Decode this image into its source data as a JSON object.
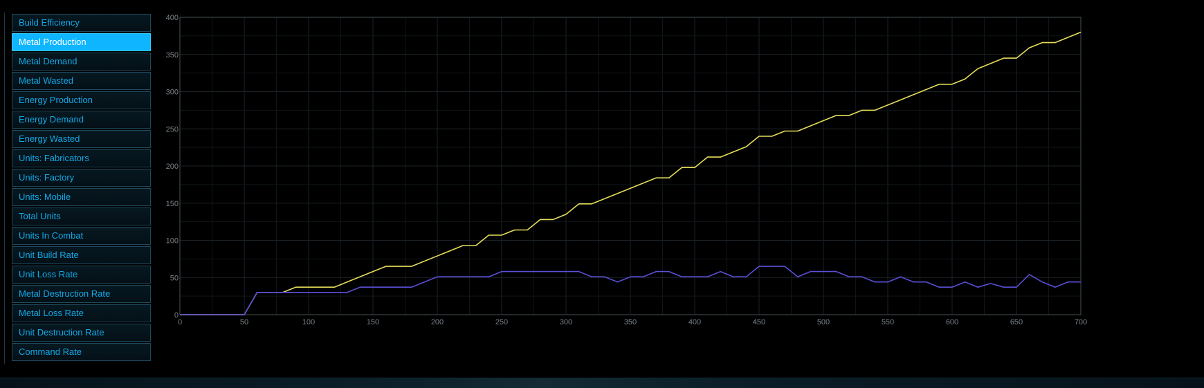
{
  "sidebar": {
    "items": [
      {
        "label": "Build Efficiency",
        "active": false
      },
      {
        "label": "Metal Production",
        "active": true
      },
      {
        "label": "Metal Demand",
        "active": false
      },
      {
        "label": "Metal Wasted",
        "active": false
      },
      {
        "label": "Energy Production",
        "active": false
      },
      {
        "label": "Energy Demand",
        "active": false
      },
      {
        "label": "Energy Wasted",
        "active": false
      },
      {
        "label": "Units: Fabricators",
        "active": false
      },
      {
        "label": "Units: Factory",
        "active": false
      },
      {
        "label": "Units: Mobile",
        "active": false
      },
      {
        "label": "Total Units",
        "active": false
      },
      {
        "label": "Units In Combat",
        "active": false
      },
      {
        "label": "Unit Build Rate",
        "active": false
      },
      {
        "label": "Unit Loss Rate",
        "active": false
      },
      {
        "label": "Metal Destruction Rate",
        "active": false
      },
      {
        "label": "Metal Loss Rate",
        "active": false
      },
      {
        "label": "Unit Destruction Rate",
        "active": false
      },
      {
        "label": "Command Rate",
        "active": false
      }
    ]
  },
  "colors": {
    "accent": "#0fb6ff",
    "series_yellow": "#e6dd5a",
    "series_blue": "#5a4fd6",
    "grid": "#1a1f22",
    "axis_text": "#7a8288"
  },
  "chart_data": {
    "type": "line",
    "xlim": [
      0,
      700
    ],
    "ylim": [
      0,
      400
    ],
    "xticks": [
      0,
      50,
      100,
      150,
      200,
      250,
      300,
      350,
      400,
      450,
      500,
      550,
      600,
      650,
      700
    ],
    "yticks": [
      0,
      50,
      100,
      150,
      200,
      250,
      300,
      350,
      400
    ],
    "grid": true,
    "series": [
      {
        "color": "#e6dd5a",
        "x": [
          0,
          50,
          60,
          80,
          90,
          120,
          160,
          180,
          220,
          230,
          240,
          250,
          260,
          270,
          280,
          290,
          300,
          310,
          320,
          370,
          380,
          390,
          400,
          410,
          420,
          440,
          450,
          460,
          470,
          480,
          510,
          520,
          530,
          540,
          590,
          600,
          610,
          620,
          640,
          650,
          660,
          670,
          680,
          700
        ],
        "y": [
          0,
          0,
          30,
          30,
          37,
          37,
          65,
          65,
          93,
          93,
          107,
          107,
          114,
          114,
          128,
          128,
          135,
          149,
          149,
          184,
          184,
          198,
          198,
          212,
          212,
          226,
          240,
          240,
          247,
          247,
          268,
          268,
          275,
          275,
          310,
          310,
          317,
          331,
          345,
          345,
          359,
          366,
          366,
          380
        ]
      },
      {
        "color": "#5a4fd6",
        "x": [
          0,
          50,
          60,
          130,
          140,
          180,
          200,
          240,
          250,
          310,
          320,
          330,
          340,
          350,
          360,
          370,
          380,
          390,
          410,
          420,
          430,
          440,
          450,
          470,
          480,
          490,
          510,
          520,
          530,
          540,
          550,
          560,
          570,
          580,
          590,
          600,
          610,
          620,
          630,
          640,
          650,
          660,
          670,
          680,
          690,
          700
        ],
        "y": [
          0,
          0,
          30,
          30,
          37,
          37,
          51,
          51,
          58,
          58,
          51,
          51,
          44,
          51,
          51,
          58,
          58,
          51,
          51,
          58,
          51,
          51,
          65,
          65,
          51,
          58,
          58,
          51,
          51,
          44,
          44,
          51,
          44,
          44,
          37,
          37,
          44,
          37,
          42,
          37,
          37,
          54,
          44,
          37,
          44,
          44
        ]
      }
    ]
  }
}
